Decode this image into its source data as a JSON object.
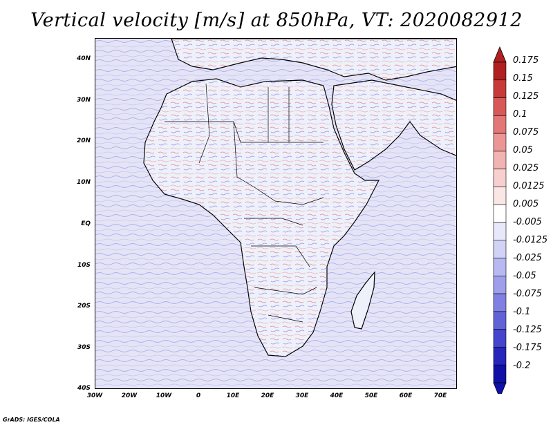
{
  "title": "Vertical velocity [m/s] at 850hPa, VT: 2020082912",
  "credit": "GrADS: IGES/COLA",
  "lat_labels": [
    "40N",
    "30N",
    "20N",
    "10N",
    "EQ",
    "10S",
    "20S",
    "30S",
    "40S"
  ],
  "lon_labels": [
    "30W",
    "20W",
    "10W",
    "0",
    "10E",
    "20E",
    "30E",
    "40E",
    "50E",
    "60E",
    "70E"
  ],
  "colorbar": {
    "labels": [
      "0.175",
      "0.15",
      "0.125",
      "0.1",
      "0.075",
      "0.05",
      "0.025",
      "0.0125",
      "0.005",
      "-0.005",
      "-0.0125",
      "-0.025",
      "-0.05",
      "-0.075",
      "-0.1",
      "-0.125",
      "-0.175",
      "-0.2"
    ],
    "colors": [
      "#b02020",
      "#c83a3a",
      "#d85858",
      "#e37676",
      "#ec9595",
      "#f2b3b3",
      "#f7cfcf",
      "#fbe6e6",
      "#ffffff",
      "#e8e8fb",
      "#d2d2f7",
      "#b9b9f1",
      "#9e9eea",
      "#8080e2",
      "#6262d8",
      "#4444cc",
      "#2626bc",
      "#1010a8"
    ]
  },
  "map": {
    "ocean_color": "#e4e4f6",
    "land_color": "#eef0fa",
    "coastline_color": "#000000"
  }
}
